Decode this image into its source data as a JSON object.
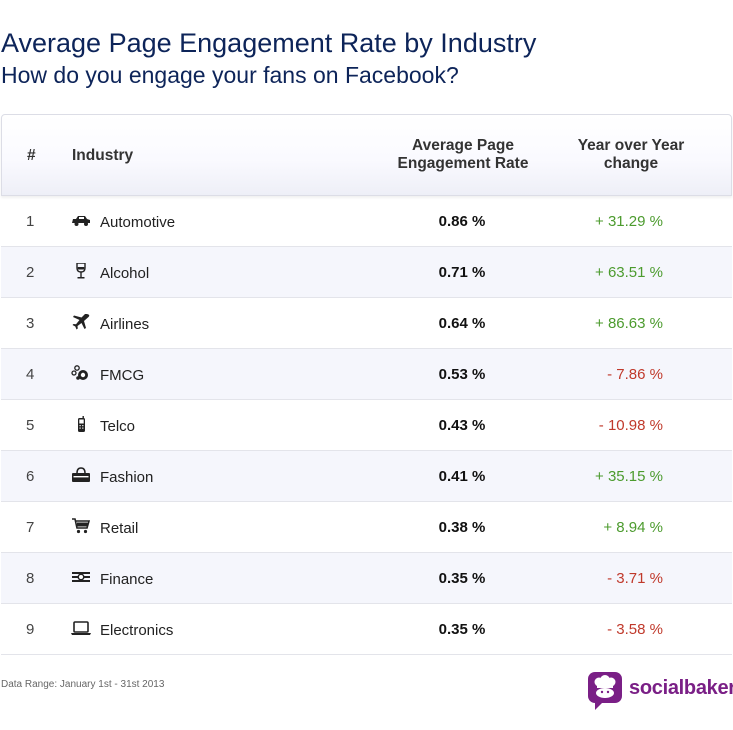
{
  "header": {
    "title": "Average Page Engagement Rate by Industry",
    "subtitle": "How do you engage your fans on Facebook?"
  },
  "table": {
    "columns": [
      "#",
      "Industry",
      "Average Page Engagement Rate",
      "Year over Year change"
    ]
  },
  "chart_data": {
    "type": "table",
    "title": "Average Page Engagement Rate by Industry",
    "subtitle": "How do you engage your fans on Facebook?",
    "columns": [
      "#",
      "Industry",
      "Average Page Engagement Rate",
      "Year over Year change"
    ],
    "rows": [
      {
        "rank": "1",
        "industry": "Automotive",
        "icon": "car-icon",
        "rate": "0.86 %",
        "yoy": "+ 31.29 %",
        "trend": "up"
      },
      {
        "rank": "2",
        "industry": "Alcohol",
        "icon": "wine-glass-icon",
        "rate": "0.71 %",
        "yoy": "+ 63.51 %",
        "trend": "up"
      },
      {
        "rank": "3",
        "industry": "Airlines",
        "icon": "airplane-icon",
        "rate": "0.64 %",
        "yoy": "+ 86.63 %",
        "trend": "up"
      },
      {
        "rank": "4",
        "industry": "FMCG",
        "icon": "bubbles-icon",
        "rate": "0.53 %",
        "yoy": "- 7.86 %",
        "trend": "down"
      },
      {
        "rank": "5",
        "industry": "Telco",
        "icon": "phone-icon",
        "rate": "0.43 %",
        "yoy": "- 10.98 %",
        "trend": "down"
      },
      {
        "rank": "6",
        "industry": "Fashion",
        "icon": "bag-icon",
        "rate": "0.41 %",
        "yoy": "+ 35.15 %",
        "trend": "up"
      },
      {
        "rank": "7",
        "industry": "Retail",
        "icon": "cart-icon",
        "rate": "0.38 %",
        "yoy": "+ 8.94 %",
        "trend": "up"
      },
      {
        "rank": "8",
        "industry": "Finance",
        "icon": "money-icon",
        "rate": "0.35 %",
        "yoy": "- 3.71 %",
        "trend": "down"
      },
      {
        "rank": "9",
        "industry": "Electronics",
        "icon": "laptop-icon",
        "rate": "0.35 %",
        "yoy": "- 3.58 %",
        "trend": "down"
      }
    ]
  },
  "colors": {
    "title": "#0d2459",
    "positive": "#4c9b2e",
    "negative": "#c0392b",
    "brand": "#7a1f86"
  },
  "footer": {
    "data_range": "Data Range: January 1st - 31st 2013",
    "brand": "socialbakers"
  }
}
